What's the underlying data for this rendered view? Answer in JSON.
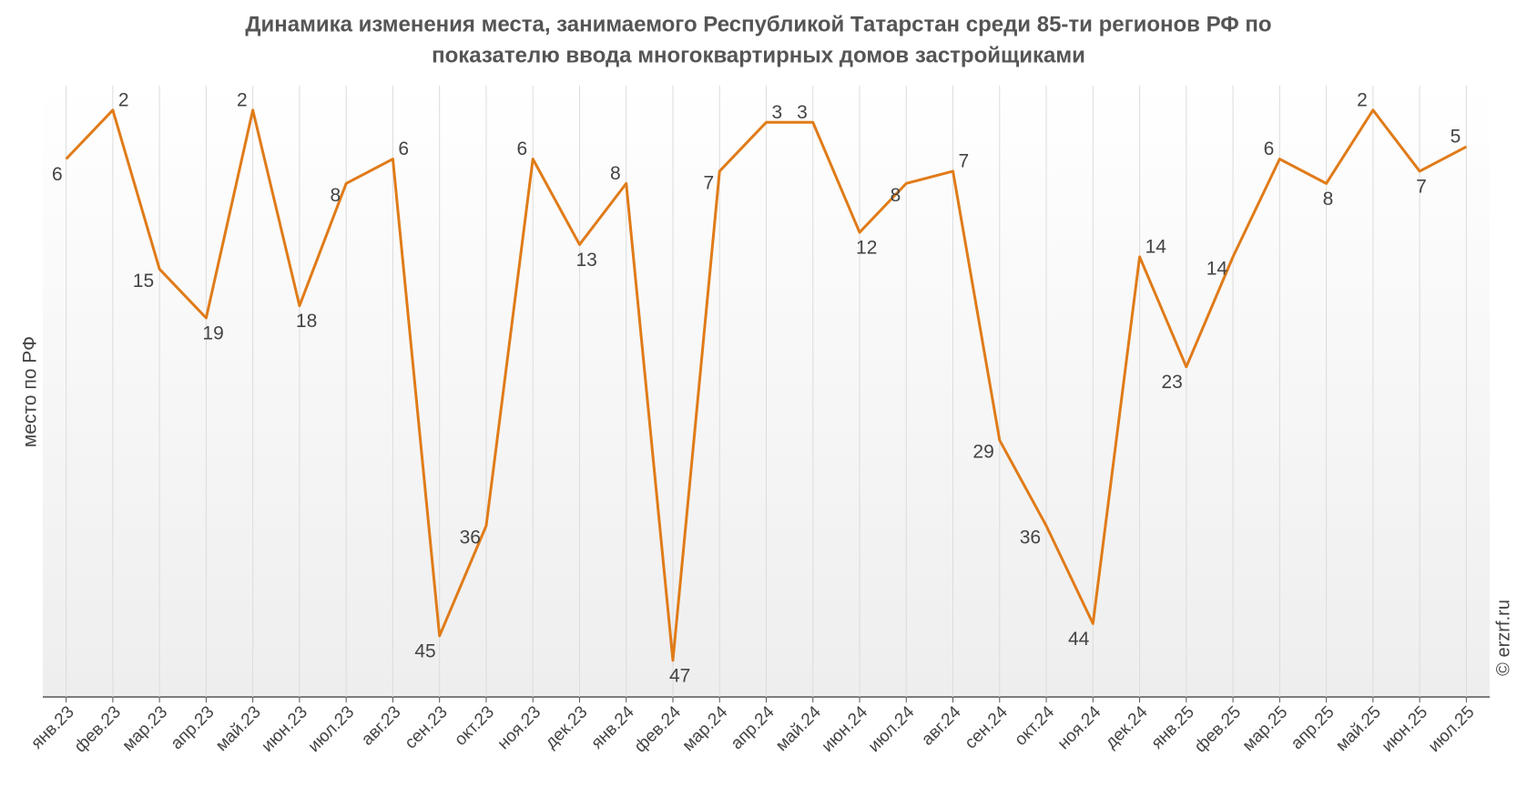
{
  "chart_data": {
    "type": "line",
    "title": [
      "Динамика изменения места, занимаемого Республикой Татарстан среди 85-ти регионов РФ по",
      "показателю ввода многоквартирных домов застройщиками"
    ],
    "y_label": "место по РФ",
    "watermark": "© erzrf.ru",
    "categories": [
      "янв.23",
      "фев.23",
      "мар.23",
      "апр.23",
      "май.23",
      "июн.23",
      "июл.23",
      "авг.23",
      "сен.23",
      "окт.23",
      "ноя.23",
      "дек.23",
      "янв.24",
      "фев.24",
      "мар.24",
      "апр.24",
      "май.24",
      "июн.24",
      "июл.24",
      "авг.24",
      "сен.24",
      "окт.24",
      "ноя.24",
      "дек.24",
      "янв.25",
      "фев.25",
      "мар.25",
      "апр.25",
      "май.25",
      "июн.25",
      "июл.25"
    ],
    "series": [
      {
        "name": "место по РФ",
        "color": "#e07b18",
        "values": [
          6,
          2,
          15,
          19,
          2,
          18,
          8,
          6,
          45,
          36,
          6,
          13,
          8,
          47,
          7,
          3,
          3,
          12,
          8,
          7,
          29,
          36,
          44,
          14,
          23,
          14,
          6,
          8,
          2,
          7,
          5
        ]
      }
    ],
    "ylim": [
      0,
      50
    ],
    "y_inverted": true,
    "grid": true
  }
}
